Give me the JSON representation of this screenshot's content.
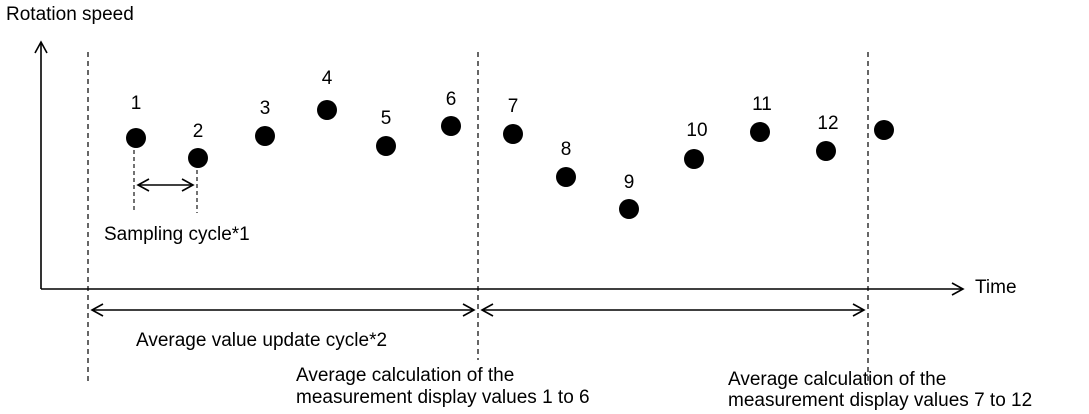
{
  "axes": {
    "y_label": "Rotation speed",
    "x_label": "Time"
  },
  "annotations": {
    "sampling_cycle": "Sampling cycle*1",
    "average_update_cycle": "Average value update cycle*2",
    "calc_group1_line1": "Average calculation of the",
    "calc_group1_line2": "measurement display values 1 to 6",
    "calc_group2_line1": "Average calculation of the",
    "calc_group2_line2": "measurement display values 7 to 12"
  },
  "points": [
    {
      "label": "1"
    },
    {
      "label": "2"
    },
    {
      "label": "3"
    },
    {
      "label": "4"
    },
    {
      "label": "5"
    },
    {
      "label": "6"
    },
    {
      "label": "7"
    },
    {
      "label": "8"
    },
    {
      "label": "9"
    },
    {
      "label": "10"
    },
    {
      "label": "11"
    },
    {
      "label": "12"
    },
    {
      "label": ""
    }
  ]
}
